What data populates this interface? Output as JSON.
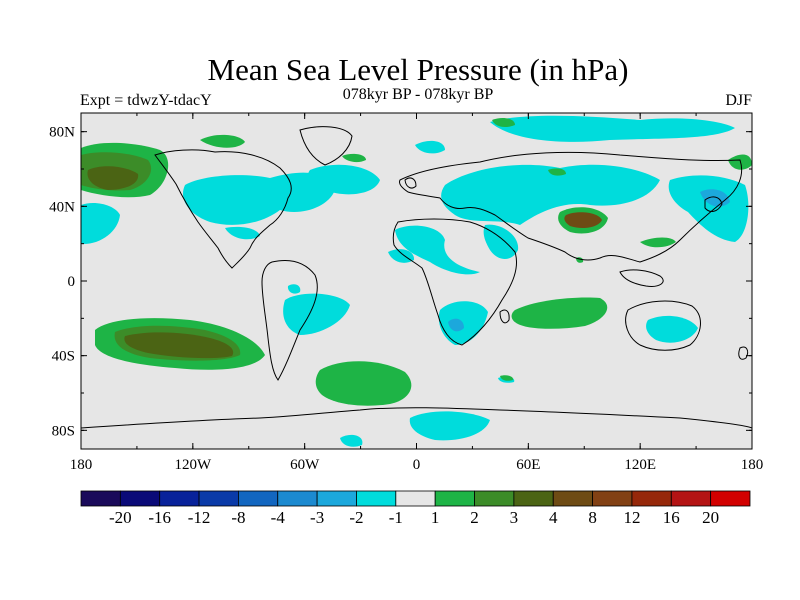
{
  "header": {
    "title": "Mean Sea Level Pressure (in hPa)",
    "left_label": "Expt = tdwzY-tdacY",
    "center_label": "078kyr BP - 078kyr BP",
    "right_label": "DJF"
  },
  "map": {
    "lon_ticks": [
      "180",
      "120W",
      "60W",
      "0",
      "60E",
      "120E",
      "180"
    ],
    "lat_ticks": [
      "80N",
      "40N",
      "0",
      "40S",
      "80S"
    ],
    "background_color": "#e6e6e6"
  },
  "colorbar": {
    "colors": [
      "#1a0a5a",
      "#0a0a78",
      "#08229a",
      "#0a3aa8",
      "#1266c0",
      "#1c8ad0",
      "#1ca8dc",
      "#00dcdc",
      "#e6e6e6",
      "#1eb446",
      "#3c8c28",
      "#4b6414",
      "#6e4b14",
      "#824114",
      "#96280a",
      "#b41414",
      "#d20000"
    ],
    "labels": [
      "-20",
      "-16",
      "-12",
      "-8",
      "-4",
      "-3",
      "-2",
      "-1",
      "1",
      "2",
      "3",
      "4",
      "8",
      "12",
      "16",
      "20"
    ]
  }
}
